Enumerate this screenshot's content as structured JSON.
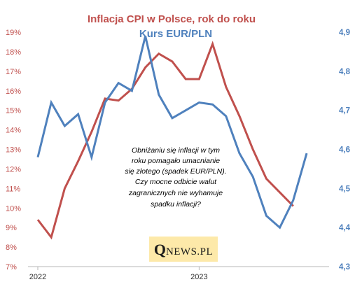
{
  "chart_data": {
    "type": "line",
    "title": "Inflacja CPI w Polsce, rok do roku",
    "subtitle": "Kurs EUR/PLN",
    "x_ticks": [
      "2022",
      "2023"
    ],
    "y_left": {
      "ticks": [
        "19%",
        "18%",
        "17%",
        "16%",
        "15%",
        "14%",
        "13%",
        "12%",
        "11%",
        "10%",
        "9%",
        "8%",
        "7%"
      ],
      "range": [
        7,
        19
      ]
    },
    "y_right": {
      "ticks": [
        "4,9",
        "4,8",
        "4,7",
        "4,6",
        "4,5",
        "4,4",
        "4,3"
      ],
      "range": [
        4.3,
        4.9
      ]
    },
    "months": [
      "2022-01",
      "2022-02",
      "2022-03",
      "2022-04",
      "2022-05",
      "2022-06",
      "2022-07",
      "2022-08",
      "2022-09",
      "2022-10",
      "2022-11",
      "2022-12",
      "2023-01",
      "2023-02",
      "2023-03",
      "2023-04",
      "2023-05",
      "2023-06",
      "2023-07",
      "2023-08",
      "2023-09",
      "2023-10"
    ],
    "series": [
      {
        "axis": "left",
        "color": "#c0504d",
        "values": [
          9.4,
          8.5,
          11.0,
          12.4,
          13.9,
          15.6,
          15.5,
          16.1,
          17.2,
          17.9,
          17.5,
          16.6,
          16.6,
          18.4,
          16.2,
          14.7,
          13.0,
          11.5,
          10.8,
          10.1,
          null,
          null
        ]
      },
      {
        "axis": "right",
        "color": "#4f81bd",
        "values": [
          4.58,
          4.72,
          4.66,
          4.69,
          4.58,
          4.72,
          4.77,
          4.75,
          4.89,
          4.74,
          4.68,
          4.7,
          4.72,
          4.715,
          4.685,
          4.59,
          4.53,
          4.43,
          4.4,
          4.47,
          4.59,
          null
        ]
      }
    ],
    "grid": false,
    "annotation": [
      "Obniżaniu się inflacji w tym",
      "roku pomagało umacnianie",
      "się złotego (spadek EUR/PLN).",
      "Czy mocne odbicie walut",
      "zagranicznych nie wyhamuje",
      "spadku inflacji?"
    ]
  },
  "logo": {
    "q": "Q",
    "rest": "NEWS.PL"
  },
  "colors": {
    "cpi": "#c0504d",
    "eurpln": "#4f81bd",
    "axis": "#b7b7b7",
    "logo_bg": "#fde9a9"
  }
}
